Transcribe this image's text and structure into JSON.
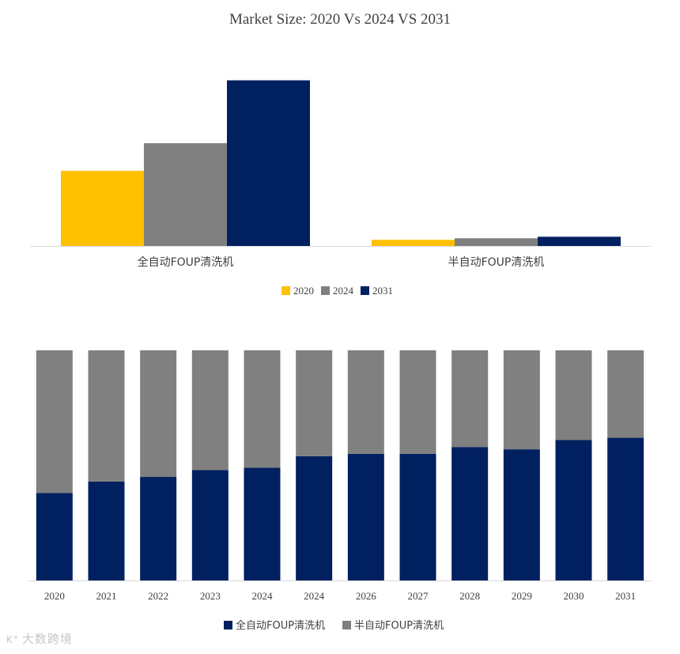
{
  "chart_data": [
    {
      "type": "bar",
      "title": "Market Size: 2020 Vs 2024 VS 2031",
      "categories": [
        "全自动FOUP清洗机",
        "半自动FOUP清洗机"
      ],
      "series": [
        {
          "name": "2020",
          "color": "#FFC000",
          "values": [
            98,
            8
          ]
        },
        {
          "name": "2024",
          "color": "#808080",
          "values": [
            134,
            10
          ]
        },
        {
          "name": "2031",
          "color": "#002060",
          "values": [
            216,
            12
          ]
        }
      ],
      "ylim": [
        0,
        230
      ],
      "legend": "bottom-center",
      "grid": false
    },
    {
      "type": "bar",
      "stacked": true,
      "percent": true,
      "categories": [
        "2020",
        "2021",
        "2022",
        "2023",
        "2024",
        "2024",
        "2026",
        "2027",
        "2028",
        "2029",
        "2030",
        "2031"
      ],
      "series": [
        {
          "name": "全自动FOUP清洗机",
          "color": "#002060",
          "values": [
            38,
            43,
            45,
            48,
            49,
            54,
            55,
            55,
            58,
            57,
            61,
            62
          ]
        },
        {
          "name": "半自动FOUP清洗机",
          "color": "#808080",
          "values": [
            62,
            57,
            55,
            52,
            51,
            46,
            45,
            45,
            42,
            43,
            39,
            38
          ]
        }
      ],
      "ylim": [
        0,
        100
      ],
      "legend": "bottom-center",
      "grid": false
    }
  ],
  "watermark": {
    "icon": "K°",
    "text": "大数跨境"
  }
}
